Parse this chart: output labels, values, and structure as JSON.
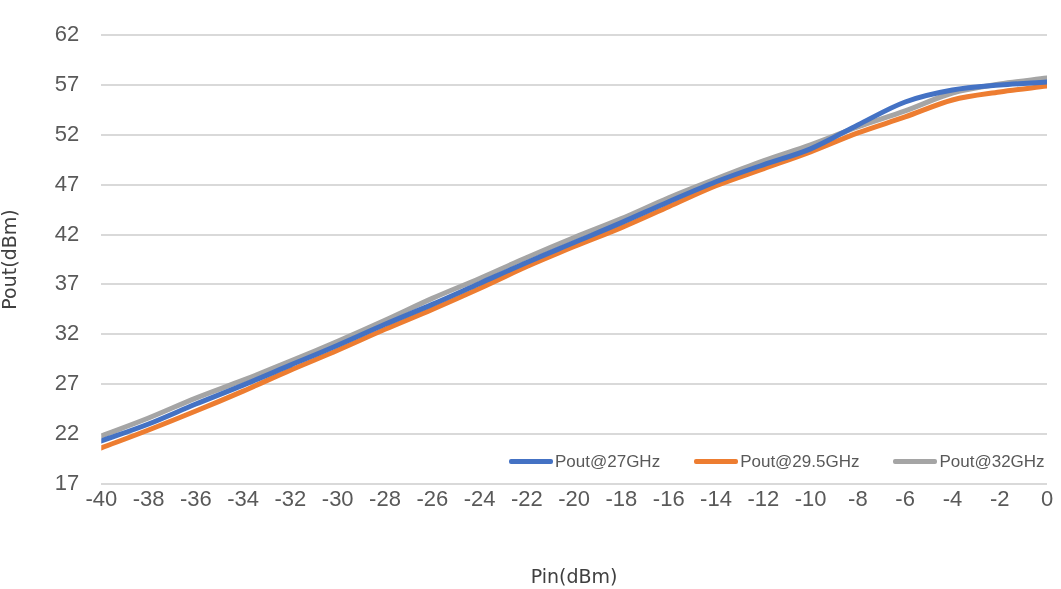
{
  "chart_data": {
    "type": "line",
    "xlabel": "Pin(dBm)",
    "ylabel": "Pout(dBm)",
    "x": [
      -40,
      -38,
      -36,
      -34,
      -32,
      -30,
      -28,
      -26,
      -24,
      -22,
      -20,
      -18,
      -16,
      -14,
      -12,
      -10,
      -8,
      -6,
      -4,
      -2,
      0
    ],
    "xlim": [
      -40,
      0
    ],
    "xticks": [
      -40,
      -38,
      -36,
      -34,
      -32,
      -30,
      -28,
      -26,
      -24,
      -22,
      -20,
      -18,
      -16,
      -14,
      -12,
      -10,
      -8,
      -6,
      -4,
      -2,
      0
    ],
    "ylim": [
      17,
      62
    ],
    "yticks": [
      17,
      22,
      27,
      32,
      37,
      42,
      47,
      52,
      57,
      62
    ],
    "grid": "y",
    "legend": "bottom right",
    "marker": "none",
    "line_style": "solid",
    "series": [
      {
        "name": "Pout@27GHz",
        "color": "#4472c4",
        "values": [
          21.3,
          23.0,
          25.0,
          26.9,
          28.9,
          30.9,
          33.0,
          35.0,
          37.1,
          39.2,
          41.2,
          43.2,
          45.3,
          47.3,
          49.0,
          50.6,
          53.0,
          55.3,
          56.5,
          57.0,
          57.3
        ]
      },
      {
        "name": "Pout@29.5GHz",
        "color": "#ed7d31",
        "values": [
          20.6,
          22.4,
          24.3,
          26.3,
          28.4,
          30.4,
          32.5,
          34.5,
          36.6,
          38.8,
          40.8,
          42.7,
          44.8,
          46.9,
          48.6,
          50.3,
          52.2,
          53.8,
          55.5,
          56.3,
          56.9
        ]
      },
      {
        "name": "Pout@32GHz",
        "color": "#a5a5a5",
        "values": [
          21.8,
          23.6,
          25.6,
          27.4,
          29.3,
          31.3,
          33.4,
          35.6,
          37.6,
          39.7,
          41.7,
          43.6,
          45.7,
          47.6,
          49.4,
          51.0,
          52.8,
          54.4,
          56.2,
          57.1,
          57.7
        ]
      }
    ]
  }
}
